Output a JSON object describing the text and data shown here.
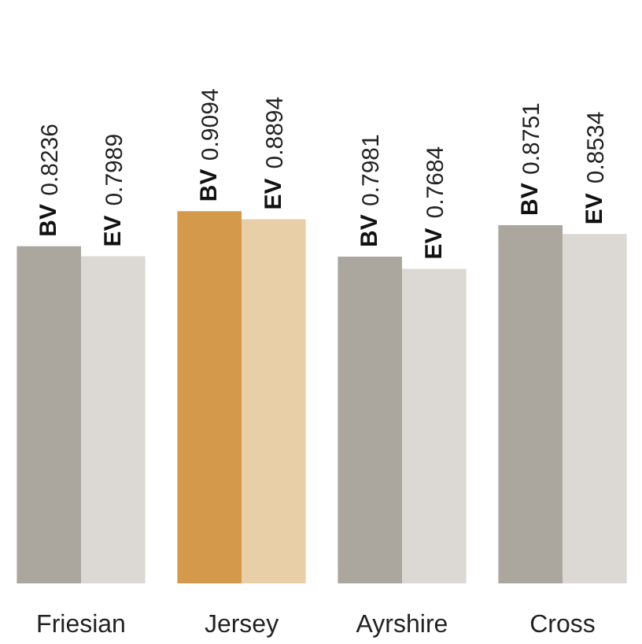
{
  "chart_data": {
    "type": "bar",
    "categories": [
      "Friesian",
      "Jersey",
      "Ayrshire",
      "Cross"
    ],
    "series": [
      {
        "name": "BV",
        "colors": [
          "#aba69e",
          "#d4994a",
          "#aba69e",
          "#aba69e"
        ],
        "values": [
          0.8236,
          0.9094,
          0.7981,
          0.8751
        ]
      },
      {
        "name": "EV",
        "colors": [
          "#dcd8d3",
          "#e8cfa8",
          "#dcd8d3",
          "#dcd8d3"
        ],
        "values": [
          0.7989,
          0.8894,
          0.7684,
          0.8534
        ]
      }
    ],
    "data_labels": true,
    "grid": false
  }
}
